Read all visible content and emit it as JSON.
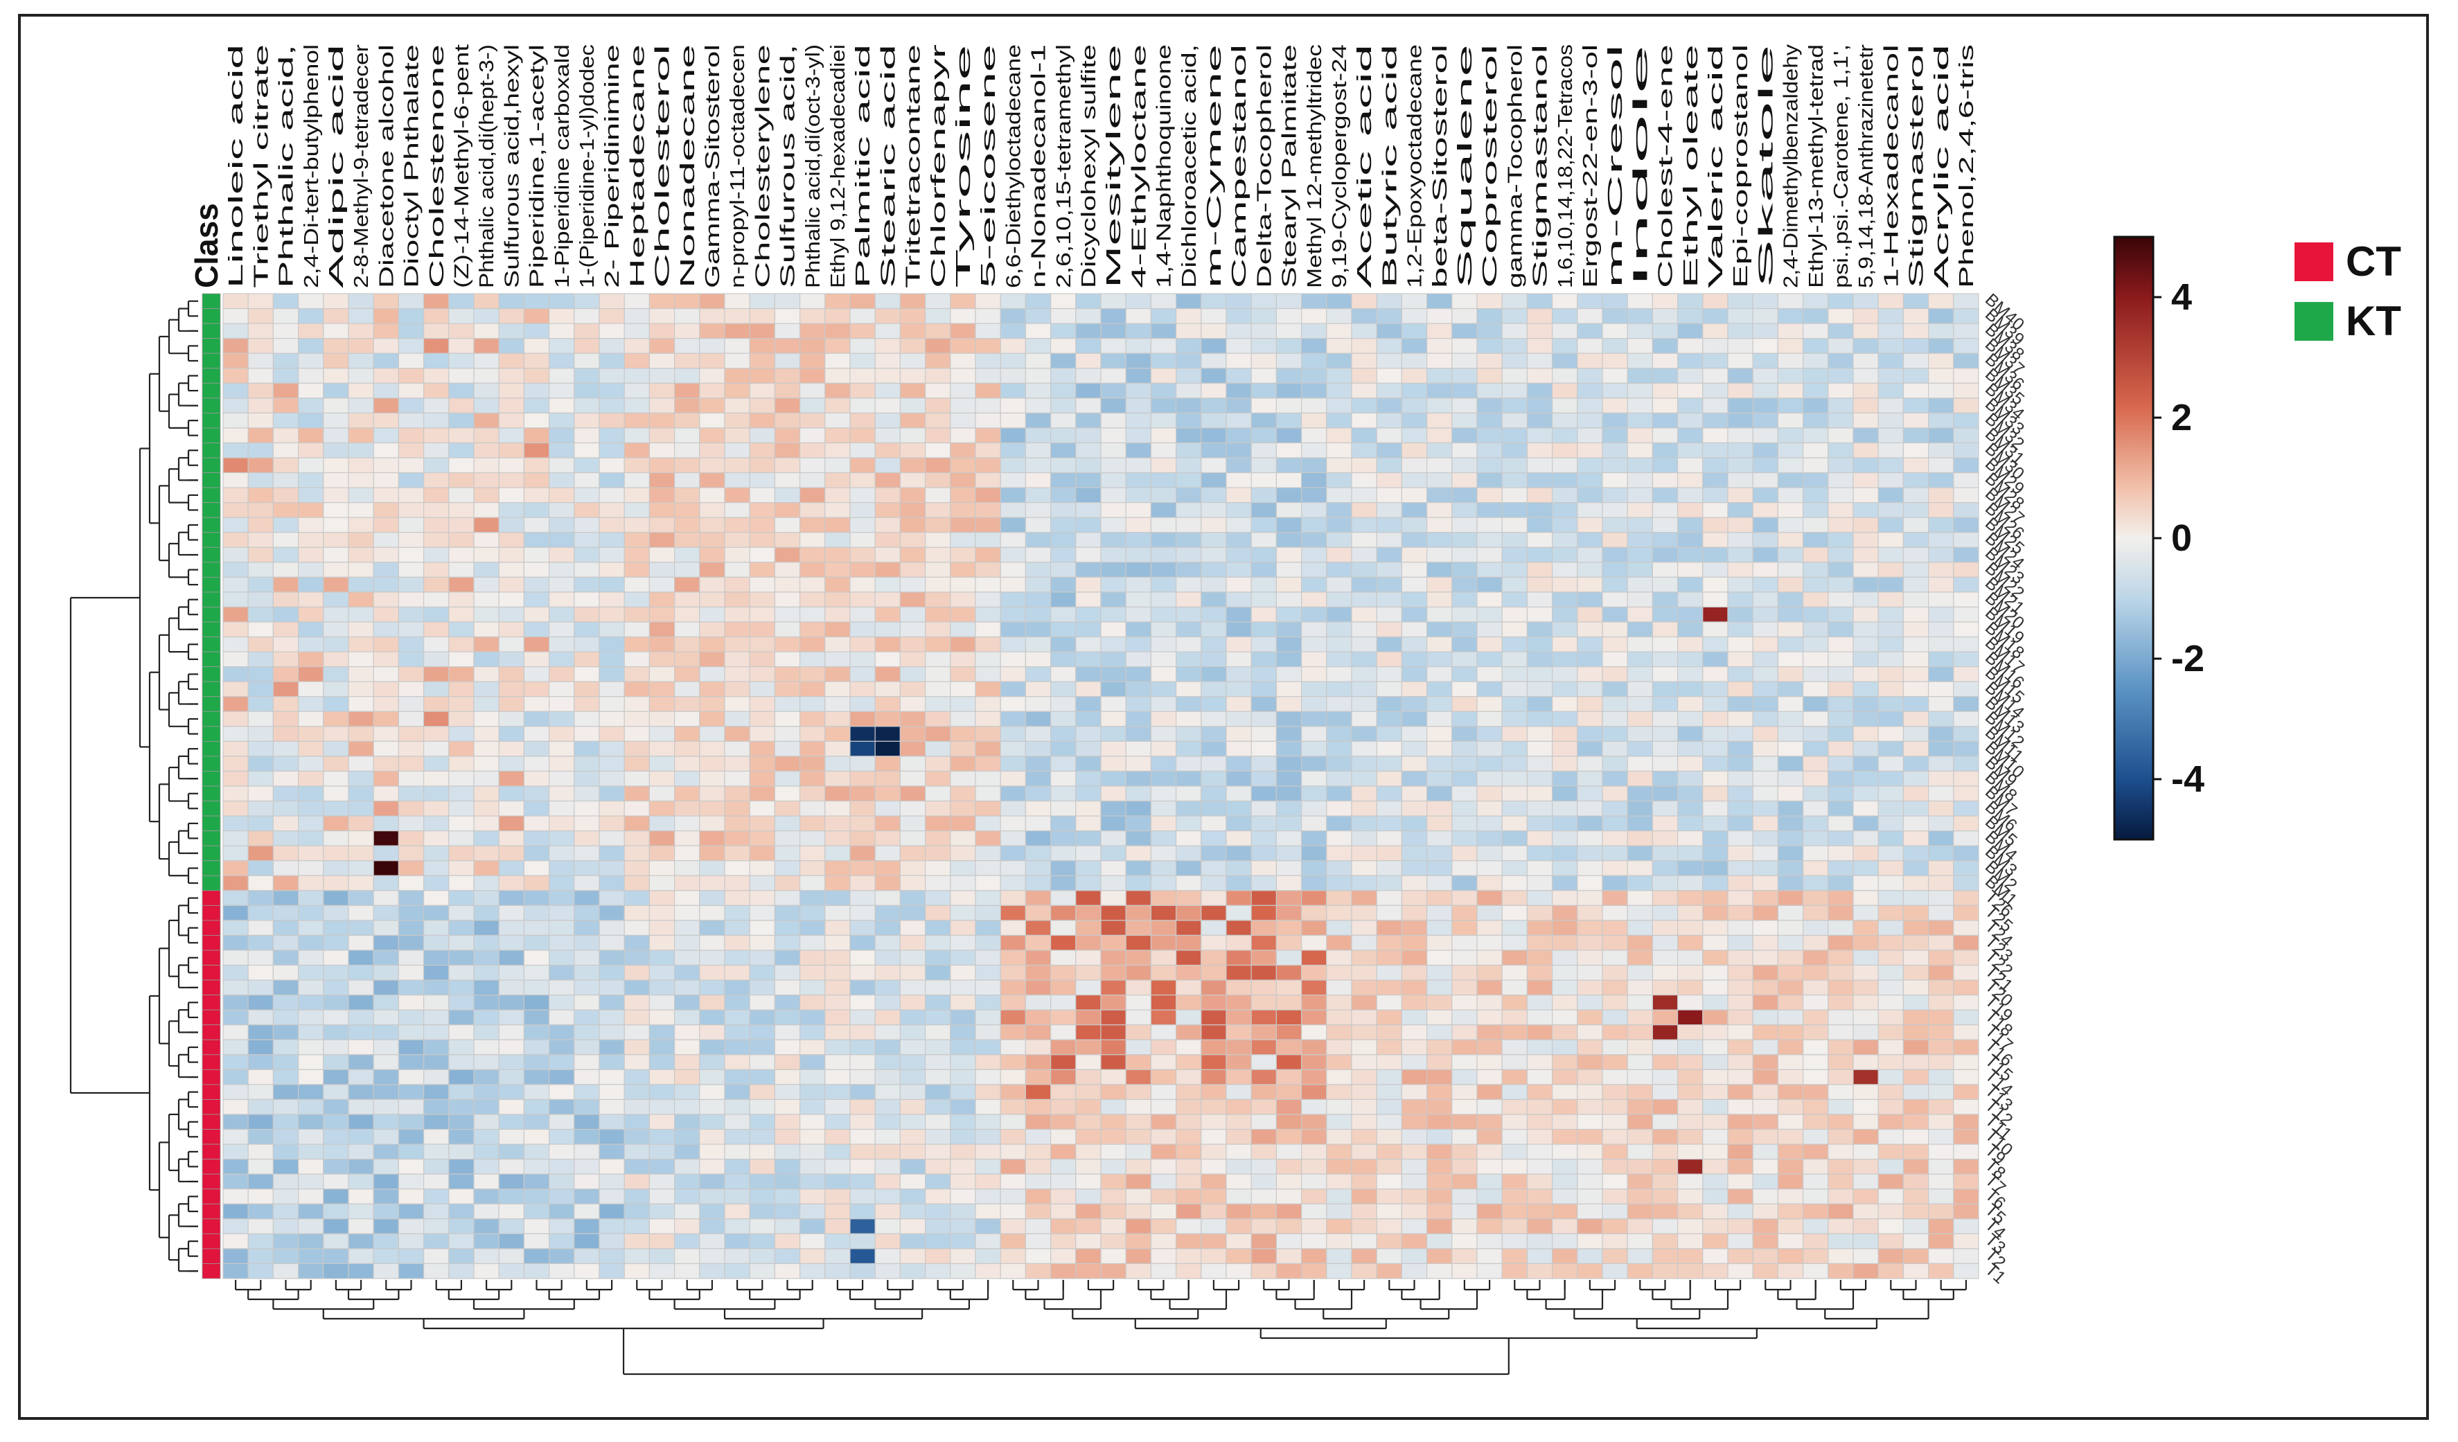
{
  "chart_data": {
    "type": "heatmap",
    "title": "",
    "class_header": "Class",
    "columns": [
      "Linoleic acid",
      "Triethyl citrate",
      "Phthalic acid,",
      "2,4-Di-tert-butylphenol",
      "Adipic acid",
      "2-8-Methyl-9-tetradecer",
      "Diacetone alcohol",
      "Dioctyl Phthalate",
      "Cholestenone",
      "(Z)-14-Methyl-6-pent",
      "Phthalic acid,di(hept-3-)",
      "Sulfurous acid,hexyl",
      "Piperidine,1-acetyl",
      "1-Piperidine carboxald",
      "1-(Piperidine-1-yl)dodec",
      "2- Piperidinimine",
      "Heptadecane",
      "Cholesterol",
      "Nonadecane",
      "Gamma-Sitosterol",
      "n-propyl-11-octadecen",
      "Cholesterylene",
      "Sulfurous acid,",
      "Phthalic acid,di(oct-3-yl)",
      "Ethyl 9,12-hexadecadiei",
      "Palmitic acid",
      "Stearic acid",
      "Tritetracontane",
      "Chlorfenapyr",
      "Tyrosine",
      "5-eicosene",
      "6,6-Diethyloctadecane",
      "n-Nonadecanol-1",
      "2,6,10,15-tetramethyl",
      "Dicyclohexyl sulfite",
      "Mesitylene",
      "4-Ethyloctane",
      "1,4-Naphthoquinone",
      "Dichloroacetic acid,",
      "m-Cymene",
      "Campestanol",
      "Delta-Tocopherol",
      "Stearyl Palmitate",
      "Methyl 12-methyltridec",
      "9,19-Cyclopergost-24",
      "Acetic acid",
      "Butyric acid",
      "1,2-Epoxyoctadecane",
      "beta-Sitosterol",
      "Squalene",
      "Coprosterol",
      "gamma-Tocopherol",
      "Stigmastanol",
      "1,6,10,14,18,22-Tetracos",
      "Ergost-22-en-3-ol",
      "m-Cresol",
      "Indole",
      "Cholest-4-ene",
      "Ethyl oleate",
      "Valeric acid",
      "Epi-coprostanol",
      "Skatole",
      "2,4-Dimethylbenzaldehy",
      "Ethyl-13-methyl-tetrad",
      "psi.,psi.-Carotene, 1,1',",
      "5,9,14,18-Anthrazinetetr",
      "1-Hexadecanol",
      "Stigmasterol",
      "Acrylic acid",
      "Phenol,2,4,6-tris"
    ],
    "rows": [
      "BM40",
      "BM39",
      "BM38",
      "BM37",
      "BM36",
      "BM35",
      "BM34",
      "BM33",
      "BM32",
      "BM31",
      "BM30",
      "BM29",
      "BM28",
      "BM27",
      "BM26",
      "BM25",
      "BM24",
      "BM23",
      "BM22",
      "BM21",
      "BM20",
      "BM19",
      "BM18",
      "BM17",
      "BM16",
      "BM15",
      "BM14",
      "BM13",
      "BM12",
      "BM11",
      "BM10",
      "BM9",
      "BM8",
      "BM7",
      "BM6",
      "BM5",
      "BM4",
      "BM3",
      "BM2",
      "BM1",
      "T26",
      "T25",
      "T24",
      "T23",
      "T22",
      "T21",
      "T20",
      "T19",
      "T18",
      "T17",
      "T16",
      "T15",
      "T14",
      "T13",
      "T12",
      "T11",
      "T10",
      "T9",
      "T8",
      "T7",
      "T6",
      "T5",
      "T4",
      "T3",
      "T2",
      "T1"
    ],
    "row_classes": [
      "KT",
      "KT",
      "KT",
      "KT",
      "KT",
      "KT",
      "KT",
      "KT",
      "KT",
      "KT",
      "KT",
      "KT",
      "KT",
      "KT",
      "KT",
      "KT",
      "KT",
      "KT",
      "KT",
      "KT",
      "KT",
      "KT",
      "KT",
      "KT",
      "KT",
      "KT",
      "KT",
      "KT",
      "KT",
      "KT",
      "KT",
      "KT",
      "KT",
      "KT",
      "KT",
      "KT",
      "KT",
      "KT",
      "KT",
      "KT",
      "CT",
      "CT",
      "CT",
      "CT",
      "CT",
      "CT",
      "CT",
      "CT",
      "CT",
      "CT",
      "CT",
      "CT",
      "CT",
      "CT",
      "CT",
      "CT",
      "CT",
      "CT",
      "CT",
      "CT",
      "CT",
      "CT",
      "CT",
      "CT",
      "CT",
      "CT"
    ],
    "colorscale": {
      "min": -5,
      "max": 5,
      "low": "#0b2a5b",
      "mid": "#f4efec",
      "high": "#5b0a12",
      "ticks": [
        4,
        2,
        0,
        -2,
        -4
      ],
      "tick_labels": [
        "4",
        "2",
        "0",
        "-2",
        "-4"
      ]
    },
    "legend": [
      {
        "label": "CT",
        "color": "#e8153a"
      },
      {
        "label": "KT",
        "color": "#1fa84a"
      }
    ],
    "legend_placement": "top-right",
    "class_colors": {
      "CT": "#e0143c",
      "KT": "#1fa84a"
    },
    "cell_border_color": "#c9c9c9",
    "description": "Clustered heatmap of standardized metabolite abundances (KT samples BM1-BM40, CT samples T1-T26); dendrograms on rows and columns."
  }
}
